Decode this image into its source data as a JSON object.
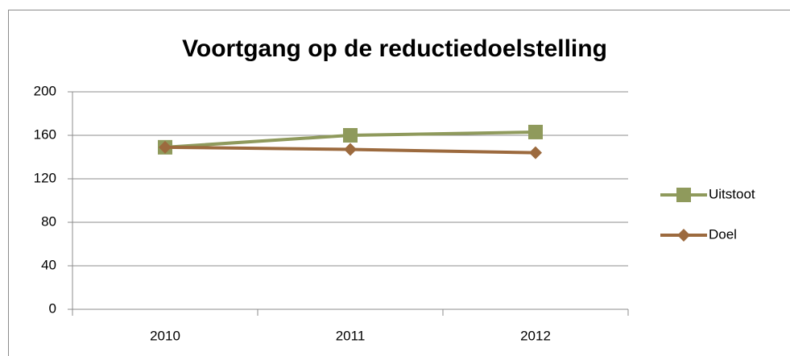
{
  "chart_data": {
    "type": "line",
    "title": "Voortgang op de reductiedoelstelling",
    "categories": [
      "2010",
      "2011",
      "2012"
    ],
    "series": [
      {
        "name": "Uitstoot",
        "color": "#8f9a5c",
        "marker": "square",
        "values": [
          149,
          160,
          163
        ]
      },
      {
        "name": "Doel",
        "color": "#9c6a3e",
        "marker": "diamond",
        "values": [
          149,
          147,
          144
        ]
      }
    ],
    "ylim": [
      0,
      200
    ],
    "yticks": [
      0,
      40,
      80,
      120,
      160,
      200
    ],
    "grid": true,
    "legend": "right"
  }
}
